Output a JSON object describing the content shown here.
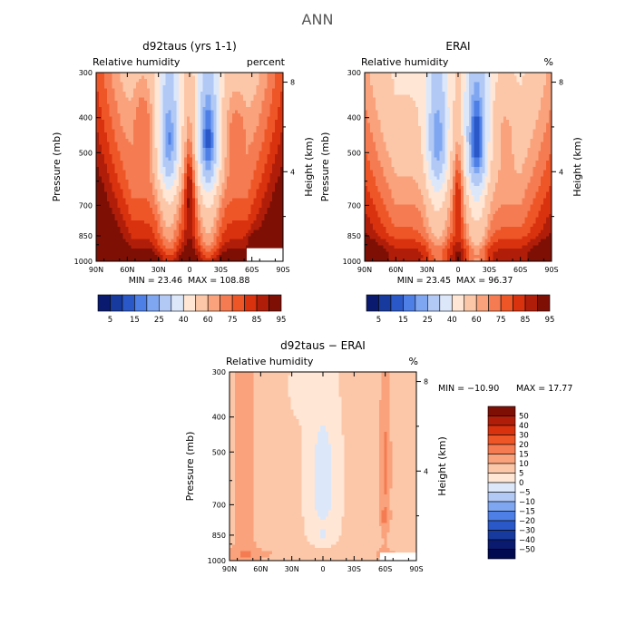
{
  "figure_title": "ANN",
  "chart_data": [
    {
      "type": "heatmap",
      "title": "d92taus (yrs 1-1)",
      "subtitle_left": "Relative humidity",
      "subtitle_right": "percent",
      "ylabel": "Pressure (mb)",
      "ylabel_right": "Height (km)",
      "x_ticks": [
        "90N",
        "60N",
        "30N",
        "0",
        "30S",
        "60S",
        "90S"
      ],
      "y_ticks": [
        "300",
        "400",
        "500",
        "700",
        "850",
        "1000"
      ],
      "height_ticks": [
        "8",
        "4"
      ],
      "x_range": [
        90,
        -90
      ],
      "y_range": [
        1000,
        300
      ],
      "min_label": "MIN =   23.46",
      "max_label": "MAX =  108.88",
      "missing_box": {
        "lat": [
          -55,
          -90
        ],
        "p": [
          920,
          1000
        ]
      }
    },
    {
      "type": "heatmap",
      "title": "ERAI",
      "subtitle_left": "Relative humidity",
      "subtitle_right": "%",
      "ylabel": "Pressure (mb)",
      "ylabel_right": "Height (km)",
      "x_ticks": [
        "90N",
        "60N",
        "30N",
        "0",
        "30S",
        "60S",
        "90S"
      ],
      "y_ticks": [
        "300",
        "400",
        "500",
        "700",
        "850",
        "1000"
      ],
      "height_ticks": [
        "8",
        "4"
      ],
      "x_range": [
        90,
        -90
      ],
      "y_range": [
        1000,
        300
      ],
      "min_label": "MIN =   23.45",
      "max_label": "MAX =   96.37"
    },
    {
      "type": "heatmap",
      "title": "d92taus − ERAI",
      "subtitle_left": "Relative humidity",
      "subtitle_right": "%",
      "ylabel": "Pressure (mb)",
      "ylabel_right": "Height (km)",
      "x_ticks": [
        "90N",
        "60N",
        "30N",
        "0",
        "30S",
        "60S",
        "90S"
      ],
      "y_ticks": [
        "300",
        "400",
        "500",
        "700",
        "850",
        "1000"
      ],
      "height_ticks": [
        "8",
        "4"
      ],
      "x_range": [
        90,
        -90
      ],
      "y_range": [
        1000,
        300
      ],
      "min_label": "MIN = −10.90",
      "max_label": "MAX =   17.77",
      "missing_box": {
        "lat": [
          -55,
          -90
        ],
        "p": [
          950,
          1000
        ]
      }
    }
  ],
  "colorbar_abs": {
    "labels": [
      "5",
      "15",
      "25",
      "40",
      "60",
      "75",
      "85",
      "95"
    ],
    "colors": [
      "#0a1a6e",
      "#173a9e",
      "#2b58c9",
      "#4e7fe6",
      "#7fa6f0",
      "#b2c9f5",
      "#dce8fa",
      "#ffe6d5",
      "#fcc7a8",
      "#f9a27c",
      "#f57c52",
      "#ee5628",
      "#d9320f",
      "#b01e0a",
      "#7d0f05"
    ]
  },
  "colorbar_diff": {
    "labels": [
      "50",
      "40",
      "30",
      "20",
      "15",
      "10",
      "5",
      "0",
      "−5",
      "−10",
      "−15",
      "−20",
      "−30",
      "−40",
      "−50"
    ],
    "colors": [
      "#7d0f05",
      "#b01e0a",
      "#d9320f",
      "#ee5628",
      "#f57c52",
      "#f9a27c",
      "#fcc7a8",
      "#ffe6d5",
      "#dce8fa",
      "#b2c9f5",
      "#7fa6f0",
      "#4e7fe6",
      "#2b58c9",
      "#173a9e",
      "#0a1a6e",
      "#000a50"
    ]
  }
}
